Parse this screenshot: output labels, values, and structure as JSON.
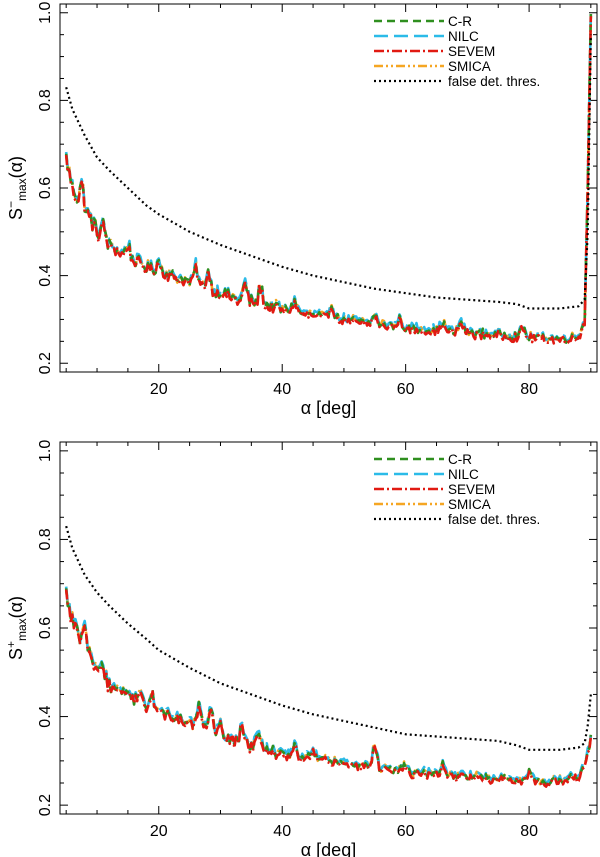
{
  "colors": {
    "C-R": "#2f8f1f",
    "NILC": "#2bbbe8",
    "SEVEM": "#e11a12",
    "SMICA": "#f5a623",
    "false det. thres.": "#000000"
  },
  "chart_data": [
    {
      "type": "line",
      "xlabel": "α [deg]",
      "ylabel": {
        "base": "S",
        "sup": "−",
        "sub": "max",
        "arg": "(α)"
      },
      "xlim": [
        4,
        91
      ],
      "ylim": [
        0.18,
        1.02
      ],
      "xticks": [
        20,
        40,
        60,
        80
      ],
      "yticks": [
        0.2,
        0.4,
        0.6,
        0.8,
        1.0
      ],
      "ytick_labels": [
        "0.2",
        "0.4",
        "0.6",
        "0.8",
        "1.0"
      ],
      "legend_position": "top-right",
      "legend": [
        "C-R",
        "NILC",
        "SEVEM",
        "SMICA",
        "false det. thres."
      ],
      "series_trend": {
        "name": "S-max components (C-R, NILC, SEVEM, SMICA)",
        "x": [
          5,
          6,
          7,
          8,
          9,
          10,
          12,
          14,
          16,
          18,
          20,
          22,
          25,
          28,
          30,
          33,
          35,
          38,
          40,
          45,
          50,
          55,
          60,
          65,
          70,
          75,
          80,
          85,
          88,
          89,
          89.5,
          90
        ],
        "y": [
          0.67,
          0.6,
          0.57,
          0.55,
          0.53,
          0.5,
          0.47,
          0.45,
          0.435,
          0.42,
          0.41,
          0.4,
          0.385,
          0.37,
          0.36,
          0.345,
          0.34,
          0.33,
          0.325,
          0.31,
          0.3,
          0.29,
          0.28,
          0.275,
          0.27,
          0.265,
          0.26,
          0.255,
          0.26,
          0.3,
          0.6,
          1.0
        ]
      },
      "spikes": {
        "x": [
          7.5,
          11,
          15,
          20,
          26,
          28,
          34,
          36.5,
          42,
          48,
          55,
          59,
          66,
          69,
          79
        ],
        "dy": [
          0.05,
          0.03,
          0.03,
          0.02,
          0.04,
          0.04,
          0.04,
          0.04,
          0.025,
          0.03,
          0.02,
          0.02,
          0.02,
          0.025,
          0.02
        ]
      },
      "threshold": {
        "name": "false det. thres.",
        "x": [
          5,
          6,
          8,
          10,
          12,
          15,
          18,
          20,
          25,
          30,
          35,
          40,
          45,
          50,
          55,
          60,
          65,
          70,
          75,
          78,
          80,
          85,
          88,
          89,
          89.5,
          90
        ],
        "y": [
          0.83,
          0.78,
          0.72,
          0.67,
          0.64,
          0.6,
          0.56,
          0.54,
          0.5,
          0.47,
          0.445,
          0.42,
          0.4,
          0.385,
          0.37,
          0.36,
          0.35,
          0.345,
          0.34,
          0.335,
          0.325,
          0.325,
          0.33,
          0.345,
          0.5,
          0.95
        ]
      }
    },
    {
      "type": "line",
      "xlabel": "α [deg]",
      "ylabel": {
        "base": "S",
        "sup": "+",
        "sub": "max",
        "arg": "(α)"
      },
      "xlim": [
        4,
        91
      ],
      "ylim": [
        0.18,
        1.02
      ],
      "xticks": [
        20,
        40,
        60,
        80
      ],
      "yticks": [
        0.2,
        0.4,
        0.6,
        0.8,
        1.0
      ],
      "ytick_labels": [
        "0.2",
        "0.4",
        "0.6",
        "0.8",
        "1.0"
      ],
      "legend_position": "top-right",
      "legend": [
        "C-R",
        "NILC",
        "SEVEM",
        "SMICA",
        "false det. thres."
      ],
      "series_trend": {
        "name": "S+max components (C-R, NILC, SEVEM, SMICA)",
        "x": [
          5,
          6,
          7,
          8,
          9,
          10,
          12,
          14,
          16,
          18,
          20,
          22,
          25,
          28,
          30,
          33,
          35,
          38,
          40,
          45,
          50,
          55,
          60,
          65,
          70,
          75,
          80,
          85,
          88,
          89,
          90
        ],
        "y": [
          0.68,
          0.62,
          0.58,
          0.56,
          0.53,
          0.5,
          0.47,
          0.455,
          0.44,
          0.425,
          0.415,
          0.4,
          0.385,
          0.37,
          0.36,
          0.34,
          0.335,
          0.32,
          0.315,
          0.305,
          0.295,
          0.285,
          0.275,
          0.27,
          0.265,
          0.26,
          0.255,
          0.255,
          0.265,
          0.29,
          0.35
        ]
      },
      "spikes": {
        "x": [
          8,
          11,
          17,
          19,
          26.5,
          28.5,
          30,
          33.5,
          36,
          42,
          45,
          55,
          60,
          66,
          80
        ],
        "dy": [
          0.04,
          0.025,
          0.03,
          0.025,
          0.045,
          0.045,
          0.03,
          0.04,
          0.035,
          0.025,
          0.02,
          0.05,
          0.02,
          0.02,
          0.02
        ]
      },
      "threshold": {
        "name": "false det. thres.",
        "x": [
          5,
          6,
          8,
          10,
          12,
          15,
          18,
          20,
          25,
          30,
          35,
          40,
          45,
          50,
          55,
          60,
          65,
          70,
          75,
          78,
          80,
          85,
          88,
          89,
          89.5,
          90
        ],
        "y": [
          0.83,
          0.78,
          0.72,
          0.68,
          0.65,
          0.61,
          0.575,
          0.55,
          0.51,
          0.475,
          0.45,
          0.425,
          0.405,
          0.39,
          0.375,
          0.36,
          0.355,
          0.35,
          0.345,
          0.335,
          0.325,
          0.325,
          0.33,
          0.34,
          0.38,
          0.45
        ]
      }
    }
  ]
}
